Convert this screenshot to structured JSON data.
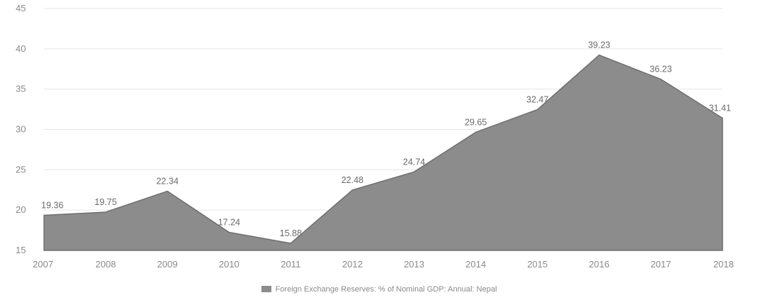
{
  "chart_data": {
    "type": "area",
    "categories": [
      "2007",
      "2008",
      "2009",
      "2010",
      "2011",
      "2012",
      "2013",
      "2014",
      "2015",
      "2016",
      "2017",
      "2018"
    ],
    "series": [
      {
        "name": "Foreign Exchange Reserves: % of Nominal GDP: Annual: Nepal",
        "values": [
          19.36,
          19.75,
          22.34,
          17.24,
          15.88,
          22.48,
          24.74,
          29.65,
          32.47,
          39.23,
          36.23,
          31.41
        ],
        "labels": [
          "19.36",
          "19.75",
          "22.34",
          "17.24",
          "15.88",
          "22.48",
          "24.74",
          "29.65",
          "32.47",
          "39.23",
          "36.23",
          "31.41"
        ],
        "color": "#8c8c8c"
      }
    ],
    "y_ticks": [
      "15",
      "20",
      "25",
      "30",
      "35",
      "40",
      "45"
    ],
    "ylim": [
      15,
      45
    ],
    "grid": true,
    "legend_position": "bottom"
  }
}
